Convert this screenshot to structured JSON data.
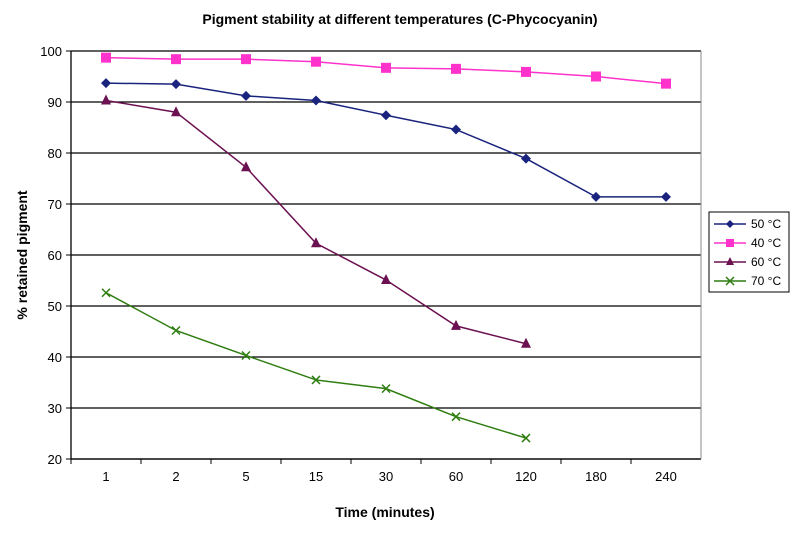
{
  "chart_data": {
    "type": "line",
    "title": "Pigment stability at different temperatures (C-Phycocyanin)",
    "xlabel": "Time (minutes)",
    "ylabel": "% retained pigment",
    "categories": [
      "1",
      "2",
      "5",
      "15",
      "30",
      "60",
      "120",
      "180",
      "240"
    ],
    "ylim": [
      20,
      100
    ],
    "yticks": [
      20,
      30,
      40,
      50,
      60,
      70,
      80,
      90,
      100
    ],
    "grid": true,
    "legend_position": "right",
    "series": [
      {
        "name": "50 °C",
        "color": "#1a237e",
        "marker": "diamond",
        "values": [
          93.7,
          93.5,
          91.2,
          90.3,
          87.4,
          84.6,
          78.9,
          71.4,
          71.4
        ]
      },
      {
        "name": "40 °C",
        "color": "#ff33cc",
        "marker": "square",
        "values": [
          98.7,
          98.4,
          98.4,
          97.9,
          96.7,
          96.5,
          95.9,
          95.0,
          93.6
        ]
      },
      {
        "name": "60 °C",
        "color": "#6b1050",
        "marker": "triangle",
        "values": [
          90.3,
          88.0,
          77.2,
          62.3,
          55.1,
          46.1,
          42.6,
          null,
          null
        ]
      },
      {
        "name": "70 °C",
        "color": "#2e7d10",
        "marker": "x",
        "values": [
          52.6,
          45.2,
          40.3,
          35.5,
          33.8,
          28.3,
          24.1,
          null,
          null
        ]
      }
    ]
  }
}
